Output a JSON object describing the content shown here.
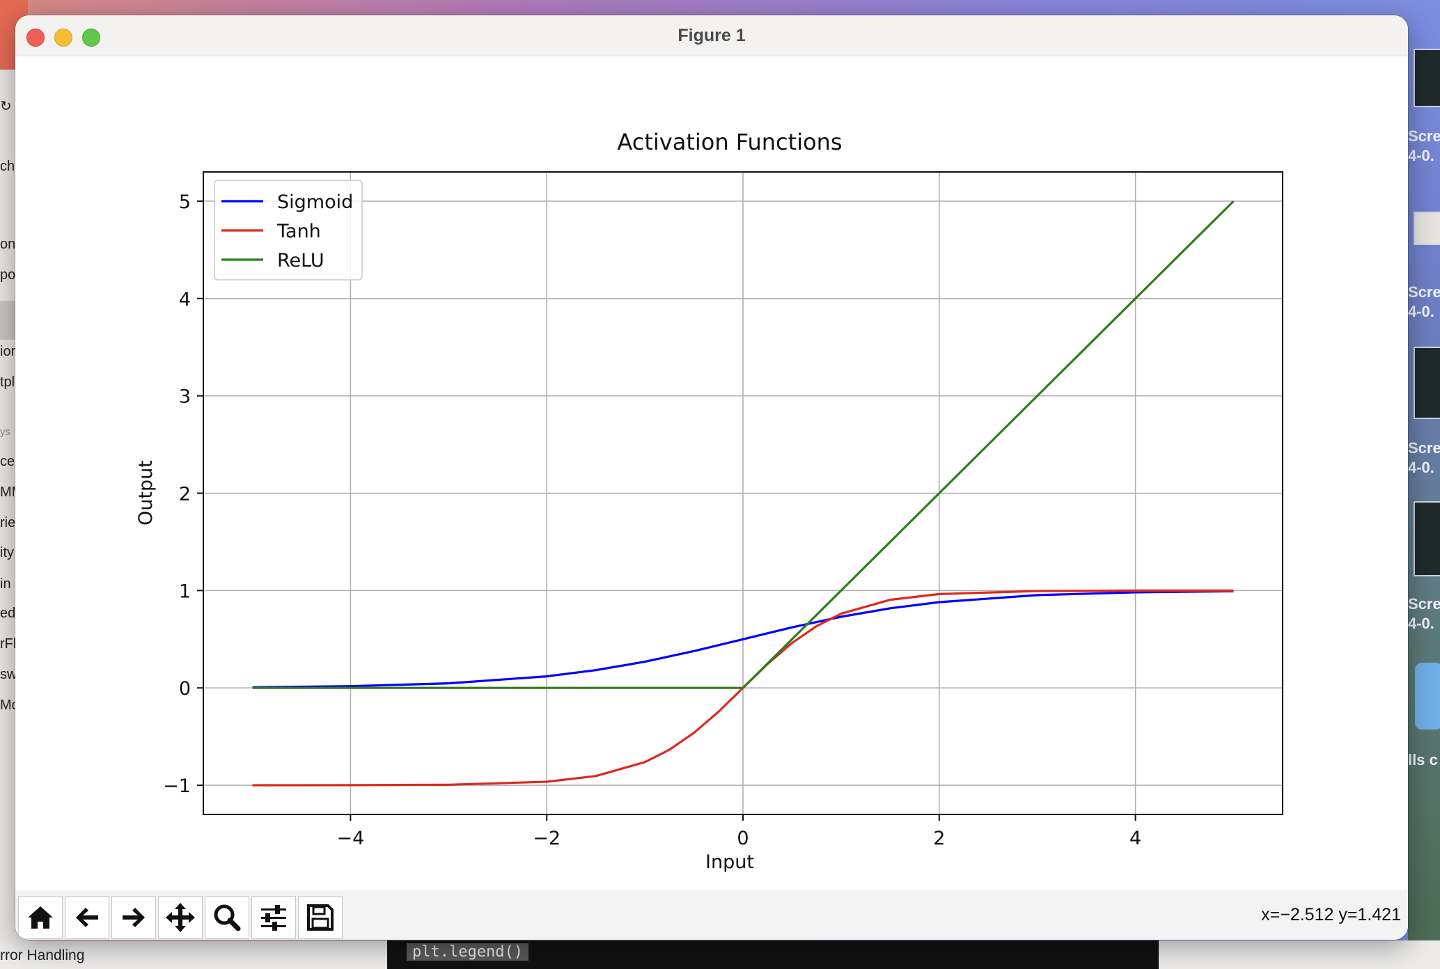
{
  "window": {
    "title": "Figure 1"
  },
  "toolbar": {
    "buttons": [
      {
        "name": "home",
        "icon": "home-icon"
      },
      {
        "name": "back",
        "icon": "arrow-left-icon"
      },
      {
        "name": "forward",
        "icon": "arrow-right-icon"
      },
      {
        "name": "pan",
        "icon": "move-icon"
      },
      {
        "name": "zoom",
        "icon": "magnifier-icon"
      },
      {
        "name": "configure",
        "icon": "sliders-icon"
      },
      {
        "name": "save",
        "icon": "floppy-disk-icon"
      }
    ],
    "coords": "x=−2.512 y=1.421"
  },
  "background": {
    "left_fragments": [
      "↻",
      "cha",
      "on",
      "po",
      "ior",
      "tpl",
      "ys",
      "ce",
      "MM",
      "rie",
      "ity",
      "in",
      "ed",
      "rFl",
      "sw",
      "Mo"
    ],
    "right_caps": [
      [
        "Scre",
        "4-0."
      ],
      [
        "Scre",
        "4-0."
      ],
      [
        "Scre",
        "4-0."
      ],
      [
        "Scre",
        "4-0."
      ],
      [
        "lls c"
      ]
    ],
    "terminal_code": "plt.legend()",
    "bottom_note": "rror Handling"
  },
  "chart_data": {
    "type": "line",
    "title": "Activation Functions",
    "xlabel": "Input",
    "ylabel": "Output",
    "xlim": [
      -5.5,
      5.5
    ],
    "ylim": [
      -1.3,
      5.3
    ],
    "xticks": [
      -4,
      -2,
      0,
      2,
      4
    ],
    "xtick_labels": [
      "−4",
      "−2",
      "0",
      "2",
      "4"
    ],
    "yticks": [
      -1,
      0,
      1,
      2,
      3,
      4,
      5
    ],
    "ytick_labels": [
      "−1",
      "0",
      "1",
      "2",
      "3",
      "4",
      "5"
    ],
    "grid": true,
    "legend": "top-left",
    "series": [
      {
        "name": "Sigmoid",
        "color": "#0000ff",
        "x": [
          -5,
          -4,
          -3,
          -2,
          -1.5,
          -1,
          -0.5,
          0,
          0.5,
          1,
          1.5,
          2,
          3,
          4,
          5
        ],
        "y": [
          0.0067,
          0.018,
          0.047,
          0.119,
          0.182,
          0.269,
          0.378,
          0.5,
          0.622,
          0.731,
          0.818,
          0.881,
          0.953,
          0.982,
          0.993
        ]
      },
      {
        "name": "Tanh",
        "color": "#dd2a1f",
        "x": [
          -5,
          -4,
          -3,
          -2,
          -1.5,
          -1,
          -0.75,
          -0.5,
          -0.25,
          0,
          0.25,
          0.5,
          0.75,
          1,
          1.5,
          2,
          3,
          4,
          5
        ],
        "y": [
          -0.9999,
          -0.9993,
          -0.995,
          -0.964,
          -0.905,
          -0.762,
          -0.635,
          -0.462,
          -0.245,
          0,
          0.245,
          0.462,
          0.635,
          0.762,
          0.905,
          0.964,
          0.995,
          0.9993,
          0.9999
        ]
      },
      {
        "name": "ReLU",
        "color": "#2e7d1e",
        "x": [
          -5,
          0,
          5
        ],
        "y": [
          0,
          0,
          5
        ]
      }
    ]
  }
}
